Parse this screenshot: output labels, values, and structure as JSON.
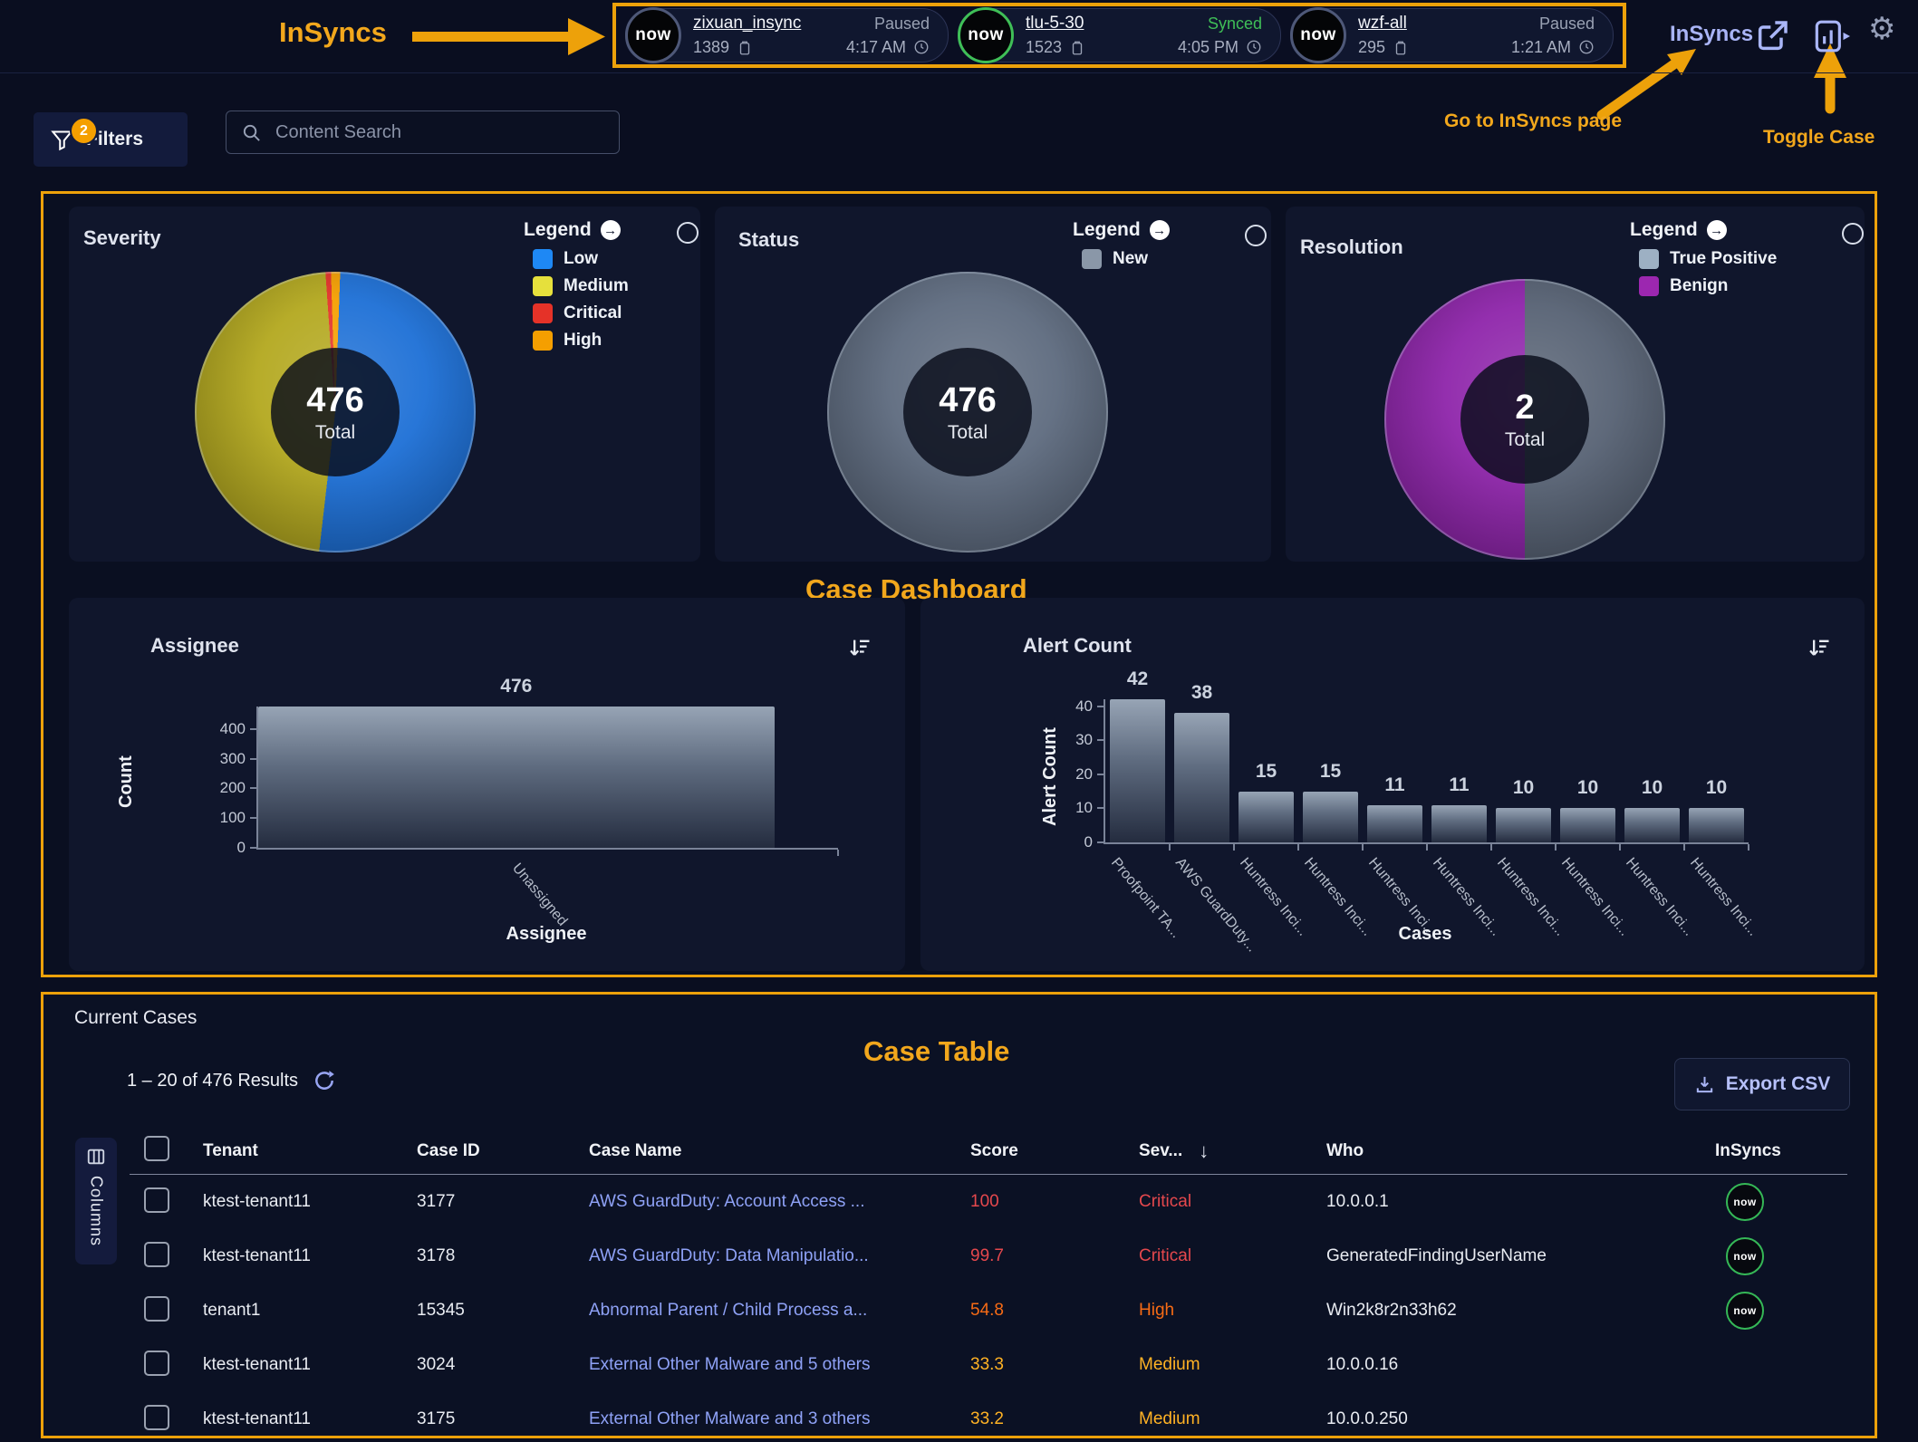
{
  "annotations": {
    "insyncs_callout": "InSyncs",
    "go_to_insyncs": "Go to InSyncs page",
    "toggle_case": "Toggle Case",
    "case_dashboard": "Case Dashboard",
    "case_table": "Case Table"
  },
  "colors": {
    "annotation_orange": "#eda10a",
    "accent_lavender": "#a9b4f6",
    "critical": "#e5484d",
    "high": "#f76b15",
    "medium": "#ffb224",
    "case_link": "#8fa2f7",
    "synced_green": "#3fbf57",
    "paused_gray": "#99a1b3"
  },
  "icons": {
    "legend_expand_arrow": "→",
    "gear": "⚙",
    "sev_sort_arrow": "↓"
  },
  "header": {
    "logo_text": "now",
    "nav_link": "InSyncs",
    "syncs": [
      {
        "name": "zixuan_insync",
        "status": "Paused",
        "count": "1389",
        "time": "4:17 AM",
        "synced": false
      },
      {
        "name": "tlu-5-30",
        "status": "Synced",
        "count": "1523",
        "time": "4:05 PM",
        "synced": true
      },
      {
        "name": "wzf-all",
        "status": "Paused",
        "count": "295",
        "time": "1:21 AM",
        "synced": false
      }
    ]
  },
  "toolbar": {
    "filters_label": "Filters",
    "filters_badge": "2",
    "search_placeholder": "Content Search"
  },
  "chart_data": [
    {
      "id": "severity",
      "type": "pie",
      "title": "Severity",
      "legend_title": "Legend",
      "center_value": "476",
      "center_label": "Total",
      "slices": [
        {
          "label": "Low",
          "value": 244,
          "color": "#1c6fd6",
          "legend_color": "#1e88f5"
        },
        {
          "label": "Medium",
          "value": 224,
          "color": "#b3a81e",
          "legend_color": "#e6e03c"
        },
        {
          "label": "Critical",
          "value": 3,
          "color": "#e53228",
          "legend_color": "#e53228"
        },
        {
          "label": "High",
          "value": 5,
          "color": "#f59f00",
          "legend_color": "#f59f00"
        }
      ]
    },
    {
      "id": "status",
      "type": "pie",
      "title": "Status",
      "legend_title": "Legend",
      "center_value": "476",
      "center_label": "Total",
      "slices": [
        {
          "label": "New",
          "value": 476,
          "color": "#5d6a7e",
          "legend_color": "#8a97a8"
        }
      ]
    },
    {
      "id": "resolution",
      "type": "pie",
      "title": "Resolution",
      "legend_title": "Legend",
      "center_value": "2",
      "center_label": "Total",
      "slices": [
        {
          "label": "True Positive",
          "value": 1,
          "color": "#566173",
          "legend_color": "#9db0c3"
        },
        {
          "label": "Benign",
          "value": 1,
          "color": "#8e24aa",
          "legend_color": "#9c27b0"
        }
      ]
    },
    {
      "id": "assignee",
      "type": "bar",
      "title": "Assignee",
      "xlabel": "Assignee",
      "ylabel": "Count",
      "categories": [
        "Unassigned"
      ],
      "values": [
        476
      ],
      "yticks": [
        0,
        100,
        200,
        300,
        400
      ]
    },
    {
      "id": "alerts",
      "type": "bar",
      "title": "Alert Count",
      "xlabel": "Cases",
      "ylabel": "Alert Count",
      "categories": [
        "Proofpoint TA...",
        "AWS GuardDuty...",
        "Huntress Inci...",
        "Huntress Inci...",
        "Huntress Inci...",
        "Huntress Inci...",
        "Huntress Inci...",
        "Huntress Inci...",
        "Huntress Inci...",
        "Huntress Inci..."
      ],
      "values": [
        42,
        38,
        15,
        15,
        11,
        11,
        10,
        10,
        10,
        10
      ],
      "yticks": [
        0,
        10,
        20,
        30,
        40
      ]
    }
  ],
  "table": {
    "title": "Current Cases",
    "results_text": "1 – 20 of 476 Results",
    "export_label": "Export CSV",
    "columns_button": "Columns",
    "headers": [
      "Tenant",
      "Case ID",
      "Case Name",
      "Score",
      "Sev...",
      "Who",
      "InSyncs"
    ],
    "rows": [
      {
        "tenant": "ktest-tenant11",
        "case_id": "3177",
        "case_name": "AWS GuardDuty: Account Access ...",
        "score": "100",
        "severity": "Critical",
        "who": "10.0.0.1",
        "has_insync": true
      },
      {
        "tenant": "ktest-tenant11",
        "case_id": "3178",
        "case_name": "AWS GuardDuty: Data Manipulatio...",
        "score": "99.7",
        "severity": "Critical",
        "who": "GeneratedFindingUserName",
        "has_insync": true
      },
      {
        "tenant": "tenant1",
        "case_id": "15345",
        "case_name": "Abnormal Parent / Child Process a...",
        "score": "54.8",
        "severity": "High",
        "who": "Win2k8r2n33h62",
        "has_insync": true
      },
      {
        "tenant": "ktest-tenant11",
        "case_id": "3024",
        "case_name": "External Other Malware and 5 others",
        "score": "33.3",
        "severity": "Medium",
        "who": "10.0.0.16",
        "has_insync": false
      },
      {
        "tenant": "ktest-tenant11",
        "case_id": "3175",
        "case_name": "External Other Malware and 3 others",
        "score": "33.2",
        "severity": "Medium",
        "who": "10.0.0.250",
        "has_insync": false
      }
    ]
  }
}
